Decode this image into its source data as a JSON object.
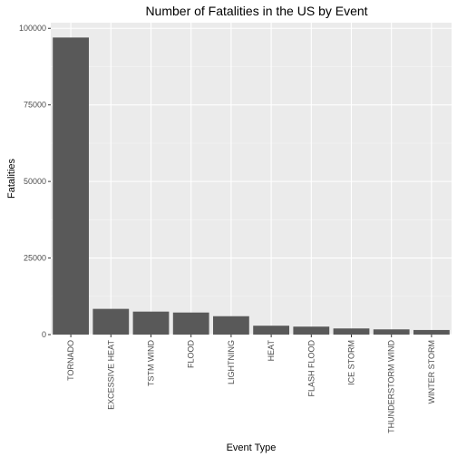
{
  "chart_data": {
    "type": "bar",
    "title": "Number of Fatalities in the US by Event",
    "xlabel": "Event Type",
    "ylabel": "Fatalities",
    "categories": [
      "TORNADO",
      "EXCESSIVE HEAT",
      "TSTM WIND",
      "FLOOD",
      "LIGHTNING",
      "HEAT",
      "FLASH FLOOD",
      "ICE STORM",
      "THUNDERSTORM WIND",
      "WINTER STORM"
    ],
    "values": [
      97000,
      8400,
      7500,
      7200,
      6000,
      2900,
      2600,
      2000,
      1700,
      1500
    ],
    "ylim": [
      0,
      101850
    ],
    "yticks": [
      0,
      25000,
      50000,
      75000,
      100000
    ],
    "grid": true,
    "bar_color": "#595959",
    "panel_background": "#ebebeb",
    "legend": "none"
  }
}
